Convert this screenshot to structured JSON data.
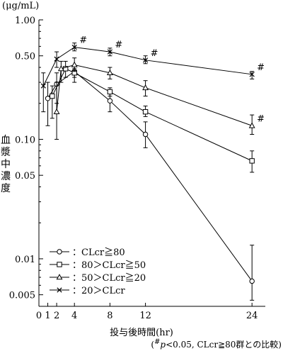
{
  "chart_data": {
    "type": "line",
    "ylabel_unit": "(μg/mL)",
    "ylabel": "血漿中濃度",
    "xlabel": "投与後時間(hr)",
    "footnote": {
      "prefix": "(",
      "sup": "#",
      "p": "p",
      "rest": "<0.05, CLcr≧80群との比較)"
    },
    "y_scale": "log",
    "ylim": [
      0.004,
      1.0
    ],
    "xlim": [
      0,
      25.5
    ],
    "x_ticks": [
      0,
      1,
      2,
      4,
      8,
      12,
      24
    ],
    "x_tick_labels": [
      "0",
      "1",
      "2",
      "4",
      "8",
      "12",
      "24"
    ],
    "y_ticks": [
      1.0,
      0.5,
      0.1,
      0.05,
      0.01,
      0.005
    ],
    "y_tick_labels": [
      "1.00",
      "0.50",
      "0.10",
      "0.05",
      "0.01",
      "0.005"
    ],
    "legend_position": "bottom-left",
    "series": [
      {
        "name": "：CLcr≧80",
        "marker": "circle",
        "points": [
          {
            "x": 1,
            "y": 0.22,
            "lo": 0.13,
            "hi": 0.3
          },
          {
            "x": 2,
            "y": 0.29,
            "lo": 0.2,
            "hi": 0.36
          },
          {
            "x": 4,
            "y": 0.37,
            "lo": 0.3,
            "hi": 0.41
          },
          {
            "x": 8,
            "y": 0.21,
            "lo": 0.17,
            "hi": 0.24
          },
          {
            "x": 12,
            "y": 0.11,
            "lo": 0.085,
            "hi": 0.14
          },
          {
            "x": 24,
            "y": 0.0065,
            "lo": 0.0045,
            "hi": 0.013
          }
        ]
      },
      {
        "name": "：80＞CLcr≧50",
        "marker": "square",
        "points": [
          {
            "x": 1.5,
            "y": 0.23,
            "lo": 0.15,
            "hi": 0.28
          },
          {
            "x": 3,
            "y": 0.39,
            "lo": 0.33,
            "hi": 0.45
          },
          {
            "x": 4,
            "y": 0.36,
            "lo": 0.33,
            "hi": 0.39
          },
          {
            "x": 8,
            "y": 0.25,
            "lo": 0.23,
            "hi": 0.27
          },
          {
            "x": 12,
            "y": 0.17,
            "lo": 0.155,
            "hi": 0.19
          },
          {
            "x": 24,
            "y": 0.066,
            "lo": 0.053,
            "hi": 0.08
          }
        ]
      },
      {
        "name": "：50＞CLcr≧20",
        "marker": "triangle",
        "points": [
          {
            "x": 2,
            "y": 0.17,
            "lo": 0.1,
            "hi": 0.3
          },
          {
            "x": 2.5,
            "y": 0.39,
            "lo": 0.3,
            "hi": 0.45
          },
          {
            "x": 4,
            "y": 0.42,
            "lo": 0.37,
            "hi": 0.48
          },
          {
            "x": 8,
            "y": 0.36,
            "lo": 0.32,
            "hi": 0.4
          },
          {
            "x": 12,
            "y": 0.27,
            "lo": 0.23,
            "hi": 0.31
          },
          {
            "x": 24,
            "y": 0.13,
            "lo": 0.11,
            "hi": 0.16
          }
        ]
      },
      {
        "name": "：20＞CLcr",
        "marker": "x",
        "points": [
          {
            "x": 0.5,
            "y": 0.28,
            "lo": 0.17,
            "hi": 0.36
          },
          {
            "x": 2,
            "y": 0.47,
            "lo": 0.4,
            "hi": 0.54
          },
          {
            "x": 4,
            "y": 0.59,
            "lo": 0.55,
            "hi": 0.64
          },
          {
            "x": 8,
            "y": 0.54,
            "lo": 0.5,
            "hi": 0.58
          },
          {
            "x": 12,
            "y": 0.46,
            "lo": 0.43,
            "hi": 0.5
          },
          {
            "x": 24,
            "y": 0.35,
            "lo": 0.32,
            "hi": 0.37
          }
        ]
      }
    ],
    "annotations": [
      {
        "text": "#",
        "x": 4,
        "y": 0.59
      },
      {
        "text": "#",
        "x": 8,
        "y": 0.54
      },
      {
        "text": "#",
        "x": 12,
        "y": 0.46
      },
      {
        "text": "#",
        "x": 24,
        "y": 0.35
      },
      {
        "text": "#",
        "x": 24,
        "y": 0.13
      }
    ]
  }
}
